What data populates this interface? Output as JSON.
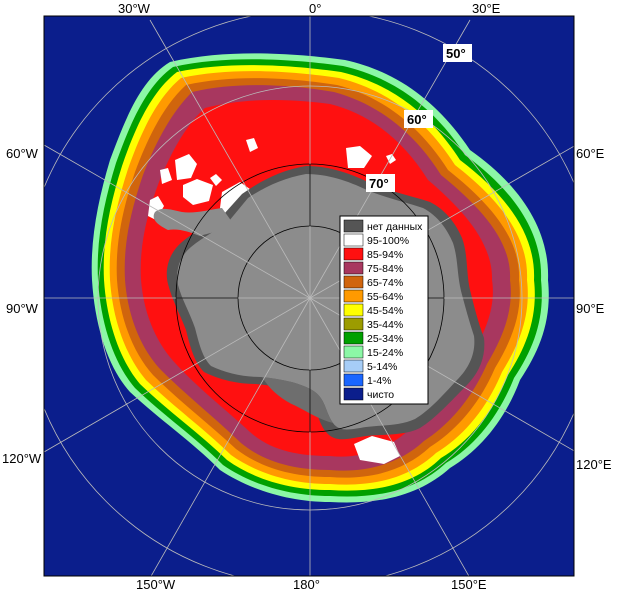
{
  "map": {
    "longitude_labels": [
      {
        "id": "lon-30w-top",
        "text": "30°W"
      },
      {
        "id": "lon-0-top",
        "text": "0°"
      },
      {
        "id": "lon-30e-top",
        "text": "30°E"
      },
      {
        "id": "lon-60w",
        "text": "60°W"
      },
      {
        "id": "lon-60e",
        "text": "60°E"
      },
      {
        "id": "lon-90w",
        "text": "90°W"
      },
      {
        "id": "lon-90e",
        "text": "90°E"
      },
      {
        "id": "lon-120w",
        "text": "120°W"
      },
      {
        "id": "lon-120e",
        "text": "120°E"
      },
      {
        "id": "lon-150w",
        "text": "150°W"
      },
      {
        "id": "lon-180",
        "text": "180°"
      },
      {
        "id": "lon-150e",
        "text": "150°E"
      }
    ],
    "latitude_labels": [
      {
        "id": "lat-50",
        "text": "50°"
      },
      {
        "id": "lat-60",
        "text": "60°"
      },
      {
        "id": "lat-70",
        "text": "70°"
      }
    ],
    "colors": {
      "ocean": "#0b1e8c",
      "land": "#8c8c8c",
      "no_data": "#555555"
    }
  },
  "legend": {
    "items": [
      {
        "label": "нет данных",
        "color": "#555555"
      },
      {
        "label": "95-100%",
        "color": "#ffffff"
      },
      {
        "label": "85-94%",
        "color": "#ff1010"
      },
      {
        "label": "75-84%",
        "color": "#a8375f"
      },
      {
        "label": "65-74%",
        "color": "#d0650d"
      },
      {
        "label": "55-64%",
        "color": "#ff9a00"
      },
      {
        "label": "45-54%",
        "color": "#ffff00"
      },
      {
        "label": "35-44%",
        "color": "#9c9c00"
      },
      {
        "label": "25-34%",
        "color": "#00a000"
      },
      {
        "label": "15-24%",
        "color": "#8cf7a6"
      },
      {
        "label": "5-14%",
        "color": "#a6cdf7"
      },
      {
        "label": "1-4%",
        "color": "#1a66ff"
      },
      {
        "label": "чисто",
        "color": "#0b1e8c"
      }
    ]
  }
}
